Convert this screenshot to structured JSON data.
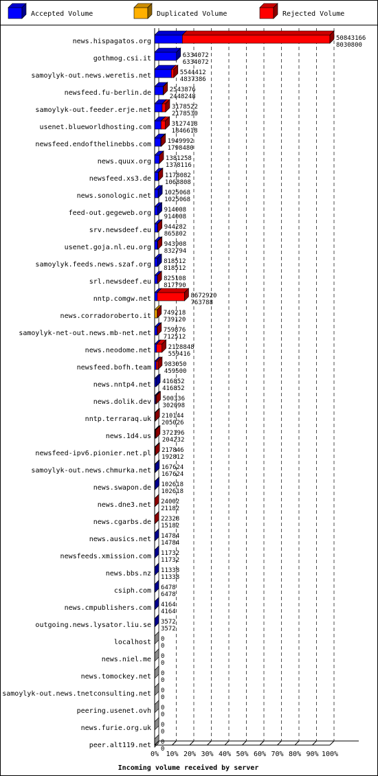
{
  "colors": {
    "accepted": "#0000ff",
    "duplicated": "#ffb000",
    "rejected": "#ff0000",
    "mixed": "#b08010"
  },
  "chart_data": {
    "type": "bar",
    "orientation": "horizontal",
    "stacked": true,
    "grid": true,
    "legend_position": "top",
    "legend": [
      "Accepted Volume",
      "Duplicated Volume",
      "Rejected Volume"
    ],
    "xlabel": "Incoming volume received by server",
    "xlim": [
      0,
      100
    ],
    "x_ticks": [
      "0%",
      "10%",
      "20%",
      "30%",
      "40%",
      "50%",
      "60%",
      "70%",
      "80%",
      "90%",
      "100%"
    ],
    "rows": [
      {
        "server": "news.hispagatos.org",
        "total": 50843166,
        "accepted": 8030800,
        "duplicated": 0,
        "rejected": 42812366,
        "line1": "50843166",
        "line2": "8030800"
      },
      {
        "server": "gothmog.csi.it",
        "total": 6334072,
        "accepted": 6334072,
        "duplicated": 0,
        "rejected": 0,
        "line1": "6334072",
        "line2": "6334072"
      },
      {
        "server": "samoylyk-out.news.weretis.net",
        "total": 5544412,
        "accepted": 4837386,
        "duplicated": 0,
        "rejected": 707026,
        "line1": "5544412",
        "line2": "4837386"
      },
      {
        "server": "newsfeed.fu-berlin.de",
        "total": 2543876,
        "accepted": 2448248,
        "duplicated": 0,
        "rejected": 95628,
        "line1": "2543876",
        "line2": "2448248"
      },
      {
        "server": "samoylyk-out.feeder.erje.net",
        "total": 3178522,
        "accepted": 2178530,
        "duplicated": 0,
        "rejected": 999992,
        "line1": "3178522",
        "line2": "2178530"
      },
      {
        "server": "usenet.blueworldhosting.com",
        "total": 3127418,
        "accepted": 1846618,
        "duplicated": 0,
        "rejected": 1280800,
        "line1": "3127418",
        "line2": "1846618"
      },
      {
        "server": "newsfeed.endofthelinebbs.com",
        "total": 1949992,
        "accepted": 1798480,
        "duplicated": 0,
        "rejected": 151512,
        "line1": "1949992",
        "line2": "1798480"
      },
      {
        "server": "news.quux.org",
        "total": 1381258,
        "accepted": 1378116,
        "duplicated": 0,
        "rejected": 3142,
        "line1": "1381258",
        "line2": "1378116"
      },
      {
        "server": "newsfeed.xs3.de",
        "total": 1178082,
        "accepted": 1068808,
        "duplicated": 0,
        "rejected": 109274,
        "line1": "1178082",
        "line2": "1068808"
      },
      {
        "server": "news.sonologic.net",
        "total": 1025068,
        "accepted": 1025068,
        "duplicated": 0,
        "rejected": 0,
        "line1": "1025068",
        "line2": "1025068"
      },
      {
        "server": "feed-out.gegeweb.org",
        "total": 914008,
        "accepted": 914008,
        "duplicated": 0,
        "rejected": 0,
        "line1": "914008",
        "line2": "914008"
      },
      {
        "server": "srv.newsdeef.eu",
        "total": 944282,
        "accepted": 865302,
        "duplicated": 0,
        "rejected": 78980,
        "line1": "944282",
        "line2": "865302"
      },
      {
        "server": "usenet.goja.nl.eu.org",
        "total": 943908,
        "accepted": 832794,
        "duplicated": 0,
        "rejected": 111114,
        "line1": "943908",
        "line2": "832794"
      },
      {
        "server": "samoylyk.feeds.news.szaf.org",
        "total": 818512,
        "accepted": 818512,
        "duplicated": 0,
        "rejected": 0,
        "line1": "818512",
        "line2": "818512"
      },
      {
        "server": "srl.newsdeef.eu",
        "total": 825108,
        "accepted": 817790,
        "duplicated": 0,
        "rejected": 7318,
        "line1": "825108",
        "line2": "817790"
      },
      {
        "server": "nntp.comgw.net",
        "total": 8672920,
        "accepted": 763788,
        "duplicated": 0,
        "rejected": 7909132,
        "line1": "8672920",
        "line2": "763788"
      },
      {
        "server": "news.corradoroberto.it",
        "total": 749218,
        "accepted": 0,
        "duplicated": 739120,
        "rejected": 10098,
        "line1": "749218",
        "line2": "739120"
      },
      {
        "server": "samoylyk-net-out.news.mb-net.net",
        "total": 759876,
        "accepted": 712512,
        "duplicated": 0,
        "rejected": 47364,
        "line1": "759876",
        "line2": "712512"
      },
      {
        "server": "news.neodome.net",
        "total": 2128848,
        "accepted": 559416,
        "duplicated": 0,
        "rejected": 1569432,
        "line1": "2128848",
        "line2": "559416"
      },
      {
        "server": "newsfeed.bofh.team",
        "total": 983050,
        "accepted": 459500,
        "duplicated": 0,
        "rejected": 523550,
        "line1": "983050",
        "line2": "459500"
      },
      {
        "server": "news.nntp4.net",
        "total": 416852,
        "accepted": 416852,
        "duplicated": 0,
        "rejected": 0,
        "line1": "416852",
        "line2": "416852"
      },
      {
        "server": "news.dolik.dev",
        "total": 500336,
        "accepted": 302098,
        "duplicated": 0,
        "rejected": 198238,
        "line1": "500336",
        "line2": "302098"
      },
      {
        "server": "nntp.terraraq.uk",
        "total": 210144,
        "accepted": 0,
        "duplicated": 205026,
        "rejected": 5118,
        "line1": "210144",
        "line2": "205026"
      },
      {
        "server": "news.1d4.us",
        "total": 372196,
        "accepted": 204232,
        "duplicated": 0,
        "rejected": 167964,
        "line1": "372196",
        "line2": "204232"
      },
      {
        "server": "newsfeed-ipv6.pionier.net.pl",
        "total": 217846,
        "accepted": 192812,
        "duplicated": 0,
        "rejected": 25034,
        "line1": "217846",
        "line2": "192812"
      },
      {
        "server": "samoylyk-out.news.chmurka.net",
        "total": 167624,
        "accepted": 167624,
        "duplicated": 0,
        "rejected": 0,
        "line1": "167624",
        "line2": "167624"
      },
      {
        "server": "news.swapon.de",
        "total": 102618,
        "accepted": 102618,
        "duplicated": 0,
        "rejected": 0,
        "line1": "102618",
        "line2": "102618"
      },
      {
        "server": "news.dne3.net",
        "total": 24002,
        "accepted": 21182,
        "duplicated": 0,
        "rejected": 2820,
        "line1": "24002",
        "line2": "21182"
      },
      {
        "server": "news.cgarbs.de",
        "total": 22328,
        "accepted": 15182,
        "duplicated": 0,
        "rejected": 7146,
        "line1": "22328",
        "line2": "15182"
      },
      {
        "server": "news.ausics.net",
        "total": 14784,
        "accepted": 14784,
        "duplicated": 0,
        "rejected": 0,
        "line1": "14784",
        "line2": "14784"
      },
      {
        "server": "newsfeeds.xmission.com",
        "total": 11732,
        "accepted": 11732,
        "duplicated": 0,
        "rejected": 0,
        "line1": "11732",
        "line2": "11732"
      },
      {
        "server": "news.bbs.nz",
        "total": 11338,
        "accepted": 11338,
        "duplicated": 0,
        "rejected": 0,
        "line1": "11338",
        "line2": "11338"
      },
      {
        "server": "csiph.com",
        "total": 6478,
        "accepted": 6478,
        "duplicated": 0,
        "rejected": 0,
        "line1": "6478",
        "line2": "6478"
      },
      {
        "server": "news.cmpublishers.com",
        "total": 4164,
        "accepted": 4164,
        "duplicated": 0,
        "rejected": 0,
        "line1": "4164",
        "line2": "4164"
      },
      {
        "server": "outgoing.news.lysator.liu.se",
        "total": 3572,
        "accepted": 3572,
        "duplicated": 0,
        "rejected": 0,
        "line1": "3572",
        "line2": "3572"
      },
      {
        "server": "localhost",
        "total": 0,
        "accepted": 0,
        "duplicated": 0,
        "rejected": 0,
        "line1": "0",
        "line2": "0"
      },
      {
        "server": "news.niel.me",
        "total": 0,
        "accepted": 0,
        "duplicated": 0,
        "rejected": 0,
        "line1": "0",
        "line2": "0"
      },
      {
        "server": "news.tomockey.net",
        "total": 0,
        "accepted": 0,
        "duplicated": 0,
        "rejected": 0,
        "line1": "0",
        "line2": "0"
      },
      {
        "server": "samoylyk-out.news.tnetconsulting.net",
        "total": 0,
        "accepted": 0,
        "duplicated": 0,
        "rejected": 0,
        "line1": "0",
        "line2": "0"
      },
      {
        "server": "peering.usenet.ovh",
        "total": 0,
        "accepted": 0,
        "duplicated": 0,
        "rejected": 0,
        "line1": "0",
        "line2": "0"
      },
      {
        "server": "news.furie.org.uk",
        "total": 0,
        "accepted": 0,
        "duplicated": 0,
        "rejected": 0,
        "line1": "0",
        "line2": "0"
      },
      {
        "server": "peer.alt119.net",
        "total": 0,
        "accepted": 0,
        "duplicated": 0,
        "rejected": 0,
        "line1": "0",
        "line2": "0"
      }
    ]
  }
}
